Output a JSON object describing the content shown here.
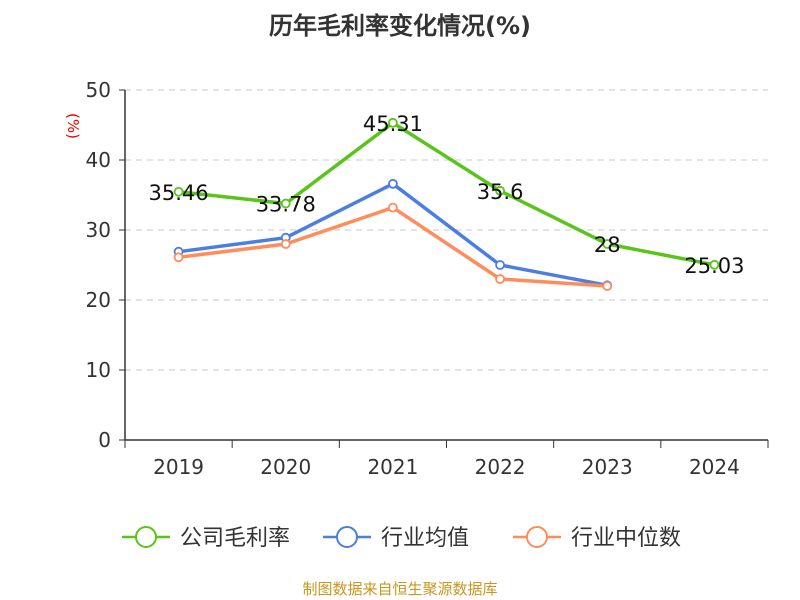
{
  "chart_data": {
    "type": "line",
    "title": "历年毛利率变化情况(%)",
    "ylabel": "(%)",
    "xlabel": "",
    "categories": [
      "2019",
      "2020",
      "2021",
      "2022",
      "2023",
      "2024"
    ],
    "ylim": [
      0,
      50
    ],
    "yticks": [
      0,
      10,
      20,
      30,
      40,
      50
    ],
    "grid": true,
    "legend_position": "bottom",
    "series": [
      {
        "name": "公司毛利率",
        "color": "#5ac41c",
        "values": [
          35.46,
          33.78,
          45.31,
          35.6,
          28,
          25.03
        ],
        "labels": [
          "35.46",
          "33.78",
          "45.31",
          "35.6",
          "28",
          "25.03"
        ]
      },
      {
        "name": "行业均值",
        "color": "#4a7ee0",
        "values": [
          26.9,
          28.9,
          36.6,
          25.0,
          22.1,
          null
        ]
      },
      {
        "name": "行业中位数",
        "color": "#ff8c5a",
        "values": [
          26.1,
          28.0,
          33.2,
          23.0,
          22.0,
          null
        ]
      }
    ]
  },
  "source": "制图数据来自恒生聚源数据库"
}
